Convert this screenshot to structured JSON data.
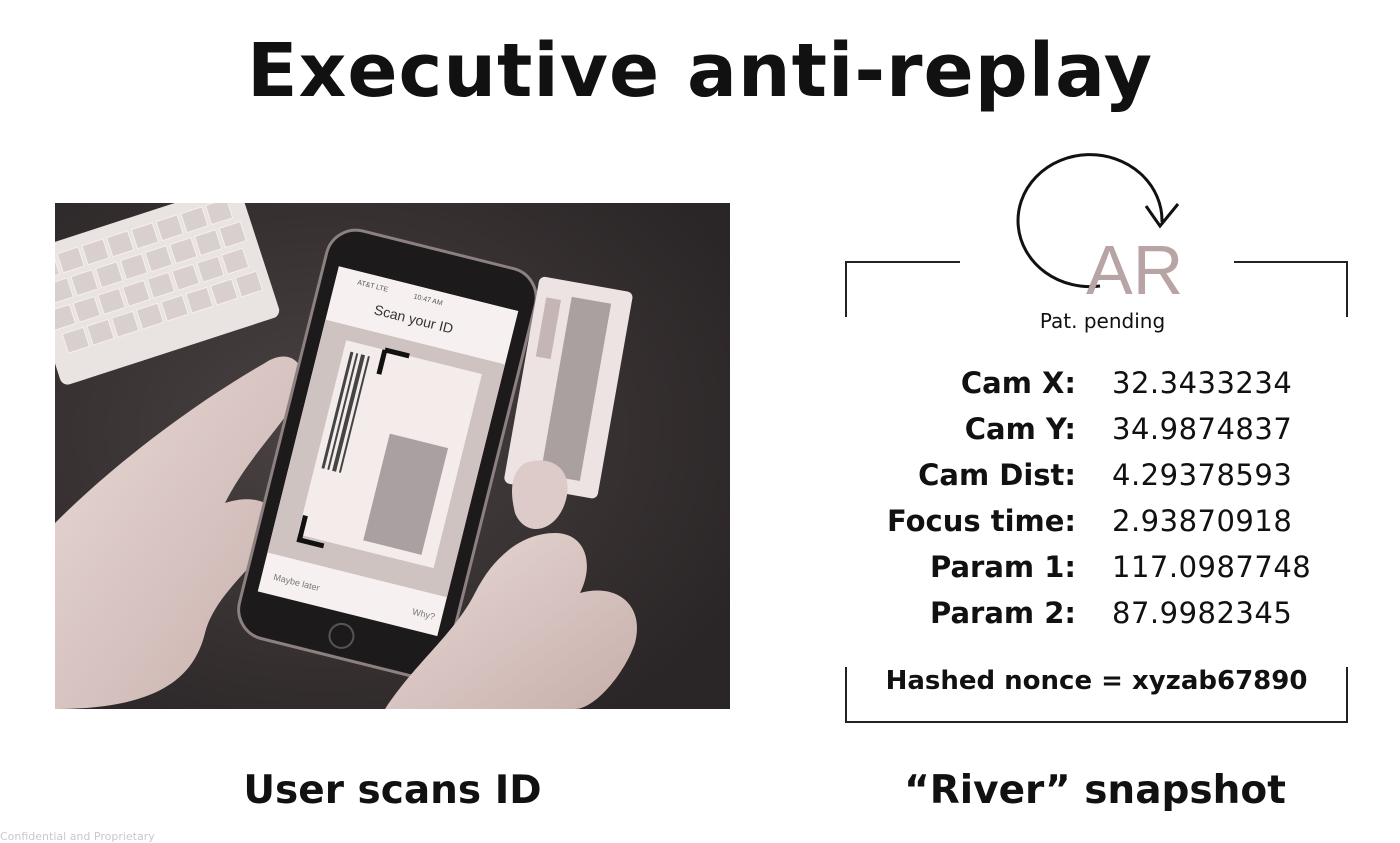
{
  "slide": {
    "title": "Executive anti-replay",
    "left_caption": "User scans ID",
    "right_caption": "“River” snapshot",
    "footer": "Confidential and Proprietary"
  },
  "photo": {
    "phone_header": "Scan your ID",
    "phone_left": "Maybe later",
    "phone_right": "Why?",
    "status_left": "AT&T LTE",
    "status_center": "10:47 AM"
  },
  "logo": {
    "mark": "AR",
    "pat_text": "Pat. pending",
    "mark_color": "#b8a4a5"
  },
  "params": [
    {
      "label": "Cam X:",
      "value": "32.3433234"
    },
    {
      "label": "Cam Y:",
      "value": "34.9874837"
    },
    {
      "label": "Cam Dist:",
      "value": "4.29378593"
    },
    {
      "label": "Focus time:",
      "value": "2.93870918"
    },
    {
      "label": "Param 1:",
      "value": "117.0987748"
    },
    {
      "label": "Param 2:",
      "value": "87.9982345"
    }
  ],
  "nonce": "Hashed nonce = xyzab67890"
}
